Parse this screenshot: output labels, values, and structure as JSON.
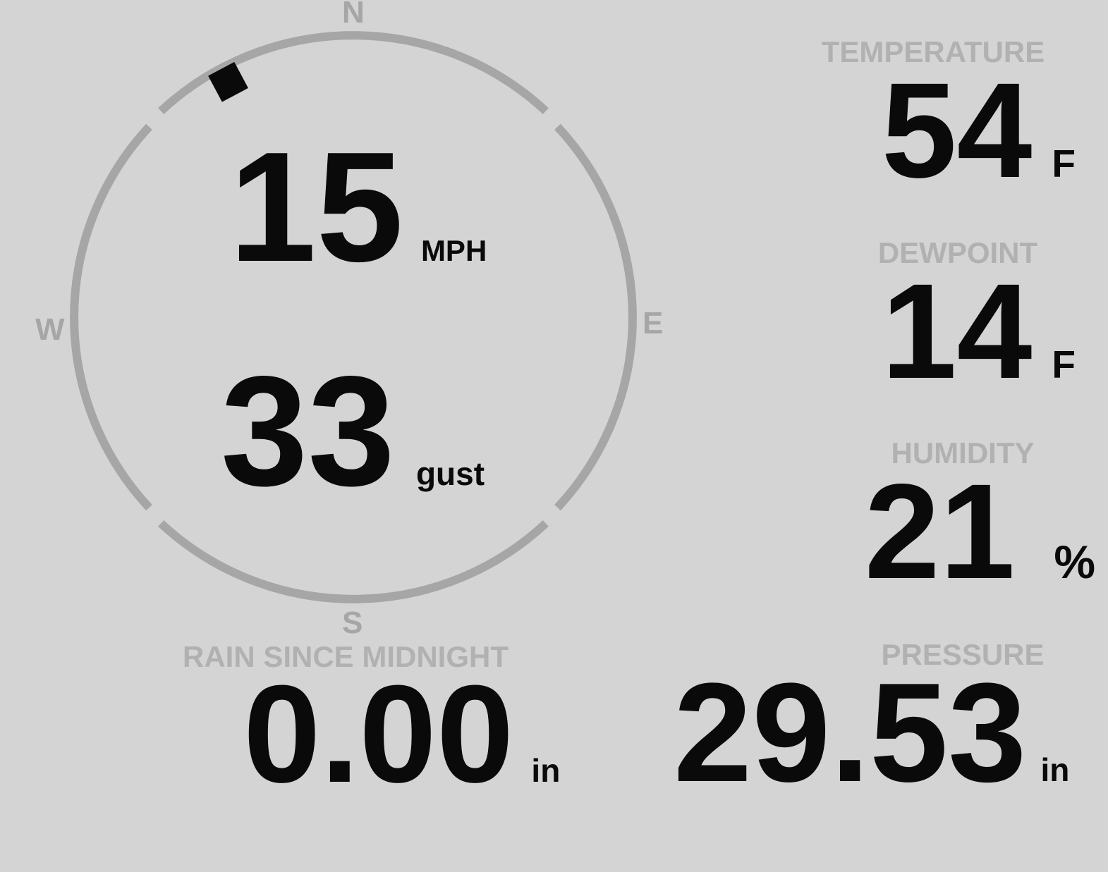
{
  "colors": {
    "background": "#d4d4d4",
    "ring": "#a6a6a6",
    "label": "#b1b1b1",
    "value": "#0a0a0a"
  },
  "wind": {
    "compass": {
      "north": "N",
      "east": "E",
      "south": "S",
      "west": "W"
    },
    "direction_degrees": 332,
    "speed": {
      "value": "15",
      "unit": "MPH"
    },
    "gust": {
      "value": "33",
      "unit": "gust"
    }
  },
  "metrics": {
    "temperature": {
      "label": "TEMPERATURE",
      "value": "54",
      "unit": "F"
    },
    "dewpoint": {
      "label": "DEWPOINT",
      "value": "14",
      "unit": "F"
    },
    "humidity": {
      "label": "HUMIDITY",
      "value": "21",
      "unit": "%"
    },
    "rain": {
      "label": "RAIN SINCE MIDNIGHT",
      "value": "0.00",
      "unit": "in"
    },
    "pressure": {
      "label": "PRESSURE",
      "value": "29.53",
      "unit": "in"
    }
  }
}
